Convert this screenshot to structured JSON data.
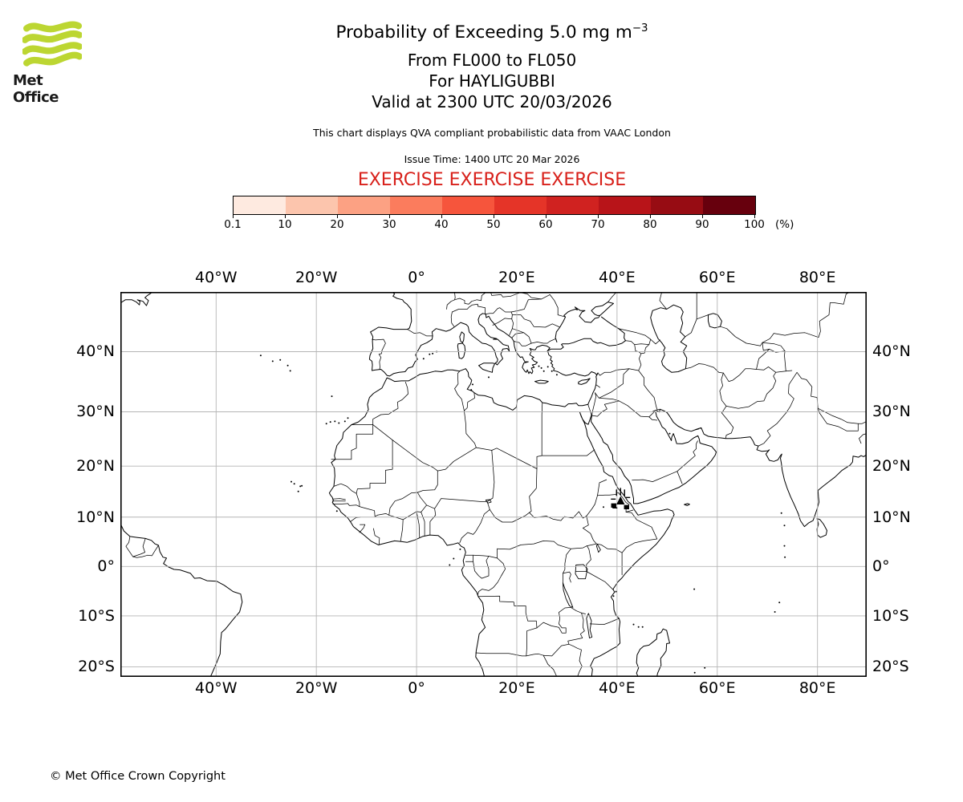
{
  "brand": {
    "name": "Met Office",
    "logo_green": "#bcd632"
  },
  "header": {
    "title_main": "Probability of Exceeding 5.0 mg m",
    "title_exponent": "−3",
    "line1": "From FL000 to FL050",
    "line2": "For HAYLIGUBBI",
    "line3": "Valid at 2300 UTC 20/03/2026",
    "description": "This chart displays QVA compliant probabilistic data from VAAC London",
    "issue_time": "Issue Time: 1400 UTC 20 Mar 2026",
    "exercise": "EXERCISE EXERCISE EXERCISE",
    "exercise_color": "#d8201a"
  },
  "colorbar": {
    "tick_labels": [
      "0.1",
      "10",
      "20",
      "30",
      "40",
      "50",
      "60",
      "70",
      "80",
      "90",
      "100"
    ],
    "unit": "(%)",
    "colors": [
      "#feeae0",
      "#fcc5ad",
      "#fca183",
      "#fb7c5d",
      "#f6553c",
      "#e53428",
      "#d02220",
      "#b81419",
      "#970c13",
      "#67000d"
    ]
  },
  "map": {
    "top_labels": [
      "40°W",
      "20°W",
      "0°",
      "20°E",
      "40°E",
      "60°E",
      "80°E"
    ],
    "bottom_labels": [
      "40°W",
      "20°W",
      "0°",
      "20°E",
      "40°E",
      "60°E",
      "80°E"
    ],
    "left_labels": [
      "40°N",
      "30°N",
      "20°N",
      "10°N",
      "0°",
      "10°S",
      "20°S"
    ],
    "right_labels": [
      "40°N",
      "30°N",
      "20°N",
      "10°N",
      "0°",
      "10°S",
      "20°S"
    ],
    "lon_ticks": [
      -40,
      -20,
      0,
      20,
      40,
      60,
      80
    ],
    "lat_ticks": [
      40,
      30,
      20,
      10,
      0,
      -10,
      -20
    ],
    "grid_color": "#b5b5b5",
    "volcano_marker_lon": 40.7,
    "volcano_marker_lat": 13.9
  },
  "footer": {
    "copyright": "© Met Office Crown Copyright"
  }
}
